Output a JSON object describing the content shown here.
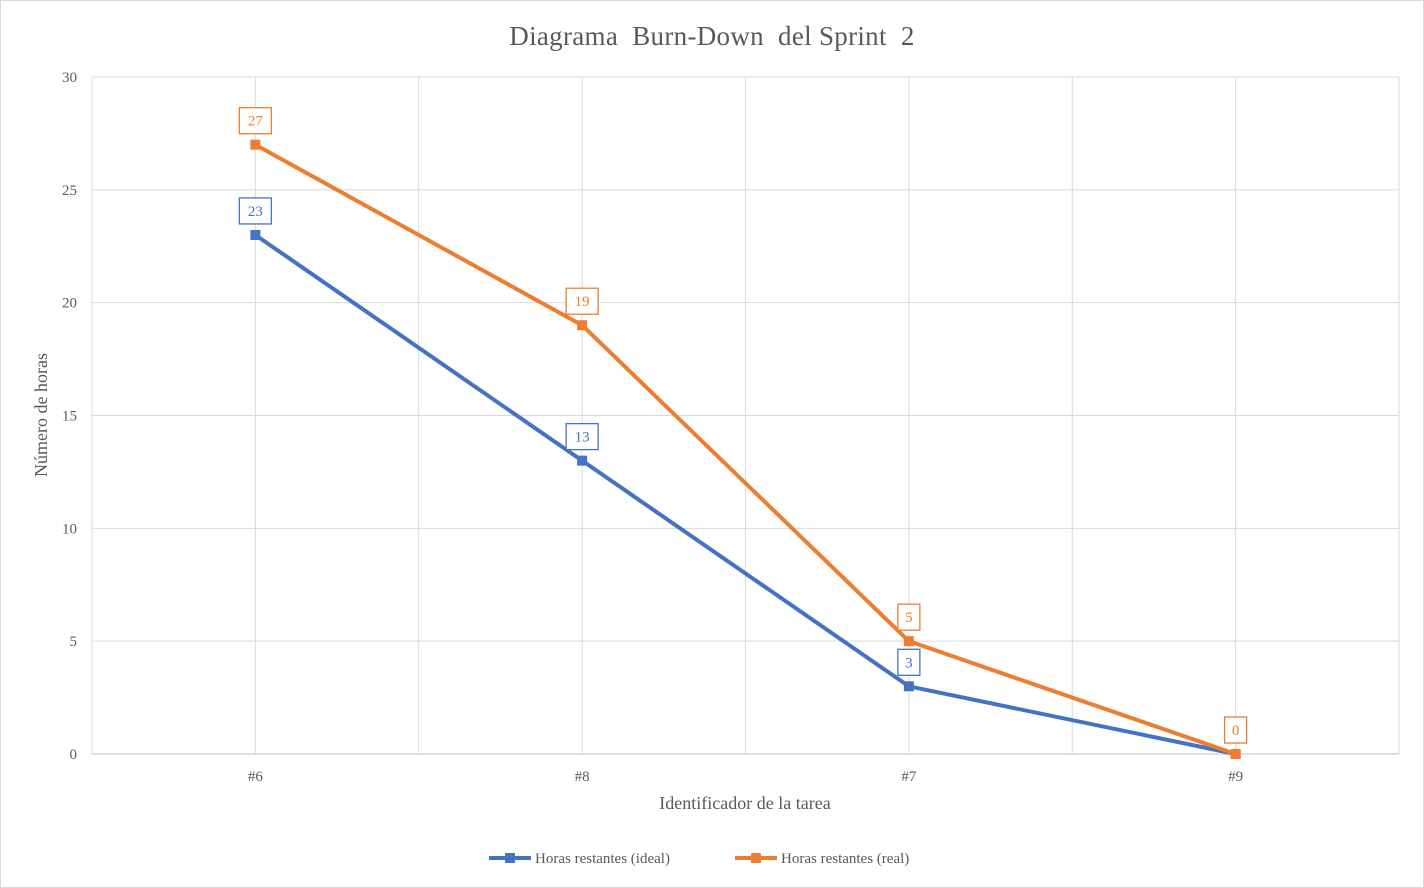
{
  "chart_data": {
    "type": "line",
    "title": "Diagrama  Burn-Down  del Sprint  2",
    "xlabel": "Identificador de la tarea",
    "ylabel": "Número de horas",
    "categories": [
      "#6",
      "#8",
      "#7",
      "#9"
    ],
    "ylim": [
      0,
      30
    ],
    "yticks": [
      0,
      5,
      10,
      15,
      20,
      25,
      30
    ],
    "grid": true,
    "legend_position": "bottom",
    "series": [
      {
        "name": "Horas restantes (ideal)",
        "values": [
          23,
          13,
          3,
          0
        ],
        "color": "#4472c4",
        "marker": "square"
      },
      {
        "name": "Horas restantes (real)",
        "values": [
          27,
          19,
          5,
          0
        ],
        "color": "#ed7d31",
        "marker": "square"
      }
    ],
    "data_labels": {
      "Horas restantes (ideal)": [
        "23",
        "13",
        "3",
        ""
      ],
      "Horas restantes (real)": [
        "27",
        "19",
        "5",
        "0"
      ]
    }
  }
}
